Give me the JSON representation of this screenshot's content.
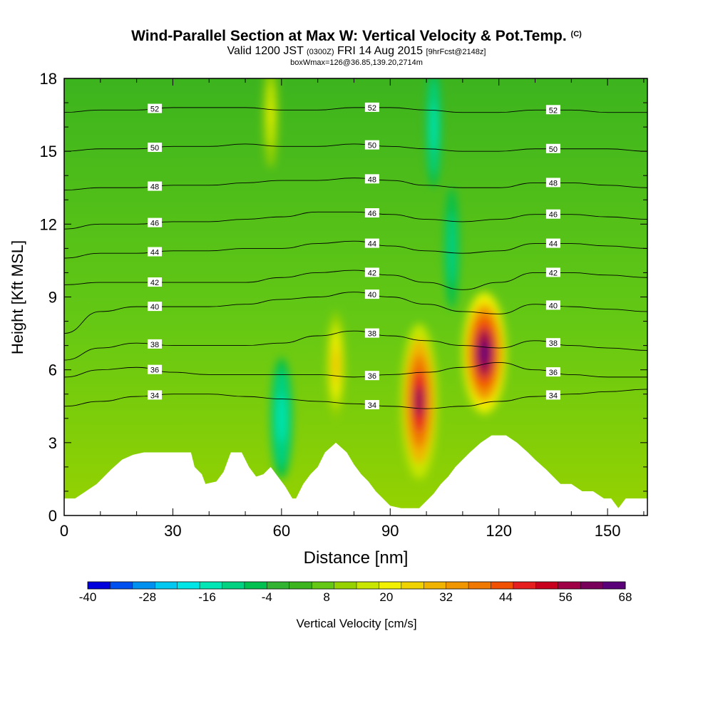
{
  "header": {
    "title": "Wind-Parallel Section at Max W: Vertical Velocity & Pot.Temp.",
    "title_mark": "(C)",
    "valid_prefix": "Valid 1200 JST",
    "valid_utc": "(0300Z)",
    "valid_date": "FRI 14 Aug 2015",
    "forecast_tag": "[9hrFcst@2148z]",
    "box_info": "boxWmax=126@36.85,139.20,2714m"
  },
  "chart_data": {
    "type": "heatmap",
    "title": "Wind-Parallel Section at Max W: Vertical Velocity & Pot.Temp.",
    "xlabel": "Distance [nm]",
    "ylabel": "Height [Kft MSL]",
    "xlim": [
      0,
      161
    ],
    "ylim": [
      0,
      18
    ],
    "xticks": [
      0,
      30,
      60,
      90,
      120,
      150
    ],
    "yticks": [
      0,
      3,
      6,
      9,
      12,
      15,
      18
    ],
    "colorbar": {
      "label": "Vertical Velocity [cm/s]",
      "ticks": [
        -40,
        -28,
        -16,
        -4,
        8,
        20,
        32,
        44,
        56,
        68
      ],
      "min": -40,
      "max": 68,
      "colors": [
        "#0000dc",
        "#0050f0",
        "#0090f0",
        "#00c8f0",
        "#00e6e6",
        "#00e6b4",
        "#00d282",
        "#00c050",
        "#32b432",
        "#3cb41e",
        "#64c814",
        "#96d200",
        "#c8e600",
        "#f0f000",
        "#f0d200",
        "#f0b400",
        "#f09600",
        "#f07800",
        "#f05000",
        "#e61e1e",
        "#c8001e",
        "#a00046",
        "#78005a",
        "#5a0078"
      ]
    },
    "terrain_kft": [
      [
        0,
        0.7
      ],
      [
        3,
        0.7
      ],
      [
        6,
        1.0
      ],
      [
        9,
        1.3
      ],
      [
        11,
        1.6
      ],
      [
        13,
        1.9
      ],
      [
        16,
        2.3
      ],
      [
        19,
        2.5
      ],
      [
        22,
        2.6
      ],
      [
        28,
        2.6
      ],
      [
        35,
        2.6
      ],
      [
        36,
        2.0
      ],
      [
        38,
        1.7
      ],
      [
        39,
        1.3
      ],
      [
        42,
        1.4
      ],
      [
        44,
        1.8
      ],
      [
        46,
        2.6
      ],
      [
        49,
        2.6
      ],
      [
        51,
        2.0
      ],
      [
        53,
        1.6
      ],
      [
        55,
        1.7
      ],
      [
        57,
        2.0
      ],
      [
        59,
        1.6
      ],
      [
        61,
        1.2
      ],
      [
        63,
        0.7
      ],
      [
        64,
        0.7
      ],
      [
        66,
        1.3
      ],
      [
        68,
        1.7
      ],
      [
        70,
        2.0
      ],
      [
        72,
        2.6
      ],
      [
        75,
        3.0
      ],
      [
        78,
        2.6
      ],
      [
        80,
        2.1
      ],
      [
        82,
        1.7
      ],
      [
        84,
        1.4
      ],
      [
        86,
        1.0
      ],
      [
        88,
        0.7
      ],
      [
        90,
        0.4
      ],
      [
        93,
        0.3
      ],
      [
        98,
        0.3
      ],
      [
        100,
        0.6
      ],
      [
        102,
        0.9
      ],
      [
        104,
        1.3
      ],
      [
        106,
        1.6
      ],
      [
        108,
        2.0
      ],
      [
        110,
        2.3
      ],
      [
        112,
        2.6
      ],
      [
        115,
        3.0
      ],
      [
        118,
        3.3
      ],
      [
        122,
        3.3
      ],
      [
        125,
        3.0
      ],
      [
        128,
        2.6
      ],
      [
        130,
        2.3
      ],
      [
        133,
        1.9
      ],
      [
        135,
        1.6
      ],
      [
        137,
        1.3
      ],
      [
        140,
        1.3
      ],
      [
        143,
        1.0
      ],
      [
        146,
        1.0
      ],
      [
        149,
        0.7
      ],
      [
        151,
        0.7
      ],
      [
        153,
        0.3
      ],
      [
        155,
        0.7
      ],
      [
        161,
        0.7
      ]
    ],
    "w_cells": [
      {
        "x": 98,
        "y": 4.7,
        "rx": 5,
        "ry": 3.2,
        "value": 60
      },
      {
        "x": 116,
        "y": 6.7,
        "rx": 6,
        "ry": 2.5,
        "value": 68
      },
      {
        "x": 75,
        "y": 6.2,
        "rx": 2.5,
        "ry": 2.2,
        "value": 28
      },
      {
        "x": 57,
        "y": 16.5,
        "rx": 2,
        "ry": 2.2,
        "value": 20
      },
      {
        "x": 60,
        "y": 4.0,
        "rx": 3,
        "ry": 2.5,
        "value": -16
      },
      {
        "x": 102,
        "y": 16.0,
        "rx": 2,
        "ry": 2.5,
        "value": -16
      },
      {
        "x": 107,
        "y": 11.0,
        "rx": 2,
        "ry": 2.5,
        "value": -12
      }
    ],
    "theta_contours": [
      {
        "label": "34",
        "heights_kft": [
          4.5,
          4.7,
          4.9,
          5.0,
          5.0,
          4.9,
          4.8,
          4.7,
          4.6,
          4.5,
          4.4,
          4.5,
          4.7,
          4.9,
          5.0,
          5.1,
          5.2
        ]
      },
      {
        "label": "36",
        "heights_kft": [
          5.7,
          6.0,
          6.1,
          5.9,
          5.8,
          5.8,
          5.8,
          5.8,
          5.7,
          5.8,
          5.9,
          6.1,
          6.3,
          6.0,
          5.8,
          5.7,
          5.7
        ]
      },
      {
        "label": "38",
        "heights_kft": [
          6.4,
          6.9,
          7.1,
          7.0,
          7.0,
          7.0,
          7.1,
          7.4,
          7.6,
          7.4,
          7.2,
          7.0,
          6.9,
          7.2,
          7.0,
          6.9,
          6.8
        ]
      },
      {
        "label": "40",
        "heights_kft": [
          7.5,
          8.4,
          8.6,
          8.6,
          8.6,
          8.7,
          8.9,
          9.0,
          9.2,
          9.0,
          8.7,
          8.4,
          8.3,
          8.7,
          8.6,
          8.5,
          8.4
        ]
      },
      {
        "label": "42",
        "heights_kft": [
          9.5,
          9.6,
          9.6,
          9.6,
          9.6,
          9.6,
          9.8,
          10.0,
          10.1,
          9.9,
          9.6,
          9.3,
          9.6,
          10.0,
          10.0,
          9.9,
          9.8
        ]
      },
      {
        "label": "44",
        "heights_kft": [
          10.6,
          10.8,
          10.8,
          10.9,
          10.9,
          11.0,
          11.0,
          11.2,
          11.3,
          11.1,
          10.9,
          10.8,
          10.9,
          11.2,
          11.2,
          11.1,
          11.0
        ]
      },
      {
        "label": "46",
        "heights_kft": [
          11.8,
          12.0,
          12.0,
          12.1,
          12.1,
          12.2,
          12.3,
          12.5,
          12.5,
          12.4,
          12.2,
          12.1,
          12.2,
          12.4,
          12.4,
          12.3,
          12.2
        ]
      },
      {
        "label": "48",
        "heights_kft": [
          13.4,
          13.5,
          13.5,
          13.6,
          13.6,
          13.7,
          13.8,
          13.8,
          13.9,
          13.8,
          13.6,
          13.5,
          13.5,
          13.7,
          13.7,
          13.6,
          13.5
        ]
      },
      {
        "label": "50",
        "heights_kft": [
          15.0,
          15.1,
          15.1,
          15.2,
          15.2,
          15.3,
          15.2,
          15.2,
          15.3,
          15.2,
          15.1,
          15.0,
          15.0,
          15.1,
          15.1,
          15.1,
          15.0
        ]
      },
      {
        "label": "52",
        "heights_kft": [
          16.6,
          16.7,
          16.7,
          16.8,
          16.8,
          16.8,
          16.7,
          16.7,
          16.8,
          16.8,
          16.7,
          16.6,
          16.6,
          16.7,
          16.7,
          16.6,
          16.6
        ]
      }
    ],
    "contour_x_nm": [
      0,
      10,
      20,
      30,
      40,
      50,
      60,
      70,
      80,
      90,
      100,
      110,
      120,
      130,
      140,
      150,
      161
    ]
  }
}
